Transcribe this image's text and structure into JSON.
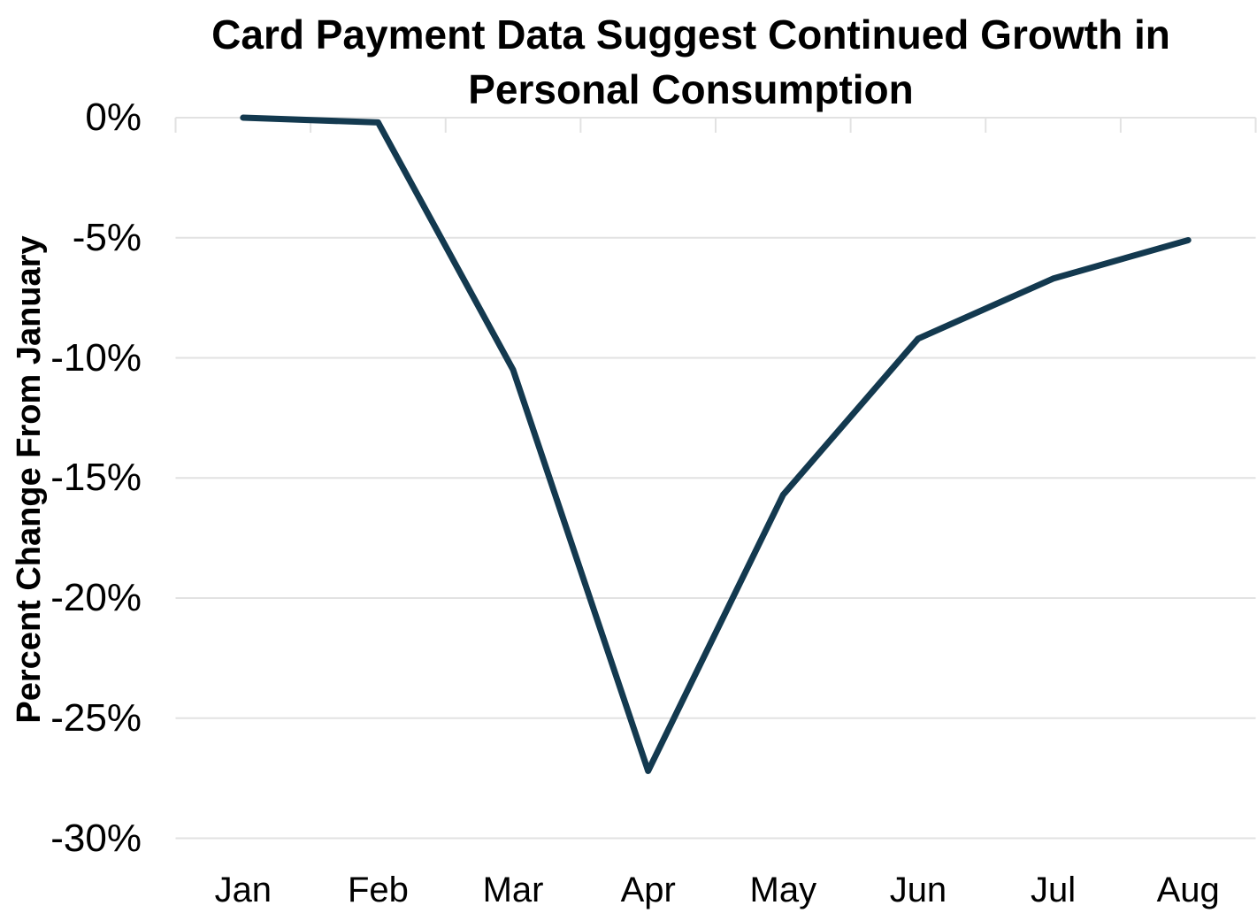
{
  "chart_data": {
    "type": "line",
    "title": "Card Payment Data Suggest Continued Growth in Personal Consumption",
    "title_lines": [
      "Card Payment Data Suggest Continued Growth in",
      "Personal Consumption"
    ],
    "xlabel": "",
    "ylabel": "Percent Change From January",
    "categories": [
      "Jan",
      "Feb",
      "Mar",
      "Apr",
      "May",
      "Jun",
      "Jul",
      "Aug"
    ],
    "series": [
      {
        "name": "Percent change from January",
        "values": [
          0.0,
          -0.2,
          -10.5,
          -27.2,
          -15.7,
          -9.2,
          -6.7,
          -5.1
        ]
      }
    ],
    "ylim": [
      -30,
      0
    ],
    "ytick_values": [
      0,
      -5,
      -10,
      -15,
      -20,
      -25,
      -30
    ],
    "ytick_labels": [
      "0%",
      "-5%",
      "-10%",
      "-15%",
      "-20%",
      "-25%",
      "-30%"
    ],
    "grid": "horizontal gridlines on, ticks below zero line between categories",
    "legend": "none",
    "colors": {
      "line": "#13394f",
      "grid": "#e2e2e2",
      "text": "#000000",
      "background": "#ffffff"
    }
  }
}
